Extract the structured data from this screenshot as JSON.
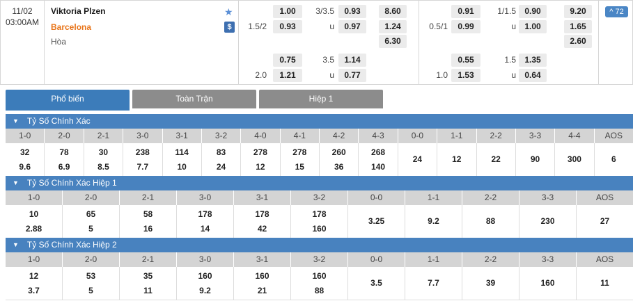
{
  "match": {
    "date": "11/02",
    "time": "03:00AM",
    "home": "Viktoria Plzen",
    "away": "Barcelona",
    "draw_label": "Hòa"
  },
  "badge": {
    "more": "^ 72"
  },
  "odds": {
    "r1c1": "1.00",
    "r1h": "3/3.5",
    "r1c2": "0.93",
    "r1c3": "8.60",
    "r2h1": "1.5/2",
    "r2c1": "0.93",
    "r2h": "u",
    "r2c2": "0.97",
    "r2c3": "1.24",
    "r3c3": "6.30",
    "r4c1": "0.75",
    "r4h": "3.5",
    "r4c2": "1.14",
    "r5h1": "2.0",
    "r5c1": "1.21",
    "r5h": "u",
    "r5c2": "0.77",
    "s1c1": "0.91",
    "s1h": "1/1.5",
    "s1c2": "0.90",
    "s1c3": "9.20",
    "s2h1": "0.5/1",
    "s2c1": "0.99",
    "s2h": "u",
    "s2c2": "1.00",
    "s2c3": "1.65",
    "s3c3": "2.60",
    "s4c1": "0.55",
    "s4h": "1.5",
    "s4c2": "1.35",
    "s5h1": "1.0",
    "s5c1": "1.53",
    "s5h": "u",
    "s5c2": "0.64"
  },
  "tabs": [
    "Phổ biến",
    "Toàn Trận",
    "Hiệp 1"
  ],
  "sections": [
    {
      "title": "Tỷ Số Chính Xác",
      "headers": [
        "1-0",
        "2-0",
        "2-1",
        "3-0",
        "3-1",
        "3-2",
        "4-0",
        "4-1",
        "4-2",
        "4-3",
        "0-0",
        "1-1",
        "2-2",
        "3-3",
        "4-4",
        "AOS"
      ],
      "top": [
        "32",
        "78",
        "30",
        "238",
        "114",
        "83",
        "278",
        "278",
        "260",
        "268",
        "24",
        "12",
        "22",
        "90",
        "300",
        "6"
      ],
      "bottom": [
        "9.6",
        "6.9",
        "8.5",
        "7.7",
        "10",
        "24",
        "12",
        "15",
        "36",
        "140",
        "",
        "",
        "",
        "",
        "",
        ""
      ]
    },
    {
      "title": "Tỷ Số Chính Xác Hiệp 1",
      "headers": [
        "1-0",
        "2-0",
        "2-1",
        "3-0",
        "3-1",
        "3-2",
        "0-0",
        "1-1",
        "2-2",
        "3-3",
        "AOS"
      ],
      "top": [
        "10",
        "65",
        "58",
        "178",
        "178",
        "178",
        "3.25",
        "9.2",
        "88",
        "230",
        "27"
      ],
      "bottom": [
        "2.88",
        "5",
        "16",
        "14",
        "42",
        "160",
        "",
        "",
        "",
        "",
        ""
      ]
    },
    {
      "title": "Tỷ Số Chính Xác Hiệp 2",
      "headers": [
        "1-0",
        "2-0",
        "2-1",
        "3-0",
        "3-1",
        "3-2",
        "0-0",
        "1-1",
        "2-2",
        "3-3",
        "AOS"
      ],
      "top": [
        "12",
        "53",
        "35",
        "160",
        "160",
        "160",
        "3.5",
        "7.7",
        "39",
        "160",
        "11"
      ],
      "bottom": [
        "3.7",
        "5",
        "11",
        "9.2",
        "21",
        "88",
        "",
        "",
        "",
        "",
        ""
      ]
    }
  ]
}
